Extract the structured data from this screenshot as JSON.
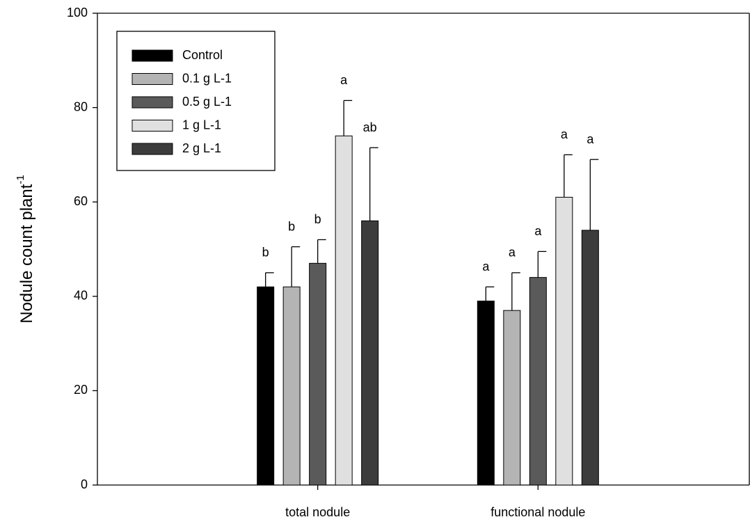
{
  "chart_data": {
    "type": "bar",
    "y_label": "Nodule count plant",
    "y_label_superscript": "-1",
    "categories": [
      "total nodule",
      "functional nodule"
    ],
    "series": [
      {
        "name": "Control",
        "color": "#000000",
        "values": [
          42,
          39
        ],
        "errors": [
          3,
          3
        ],
        "annotations": [
          "b",
          "a"
        ]
      },
      {
        "name": "0.1 g L-1",
        "color": "#b4b4b4",
        "values": [
          42,
          37
        ],
        "errors": [
          8.5,
          8
        ],
        "annotations": [
          "b",
          "a"
        ]
      },
      {
        "name": "0.5 g L-1",
        "color": "#5a5a5a",
        "values": [
          47,
          44
        ],
        "errors": [
          5,
          5.5
        ],
        "annotations": [
          "b",
          "a"
        ]
      },
      {
        "name": "1 g L-1",
        "color": "#e0e0e0",
        "values": [
          74,
          61
        ],
        "errors": [
          7.5,
          9
        ],
        "annotations": [
          "a",
          "a"
        ]
      },
      {
        "name": "2 g L-1",
        "color": "#3c3c3c",
        "values": [
          56,
          54
        ],
        "errors": [
          15.5,
          15
        ],
        "annotations": [
          "ab",
          "a"
        ]
      }
    ],
    "ylim": [
      0,
      100
    ],
    "yticks": [
      0,
      20,
      40,
      60,
      80,
      100
    ],
    "legend": "upper left"
  }
}
